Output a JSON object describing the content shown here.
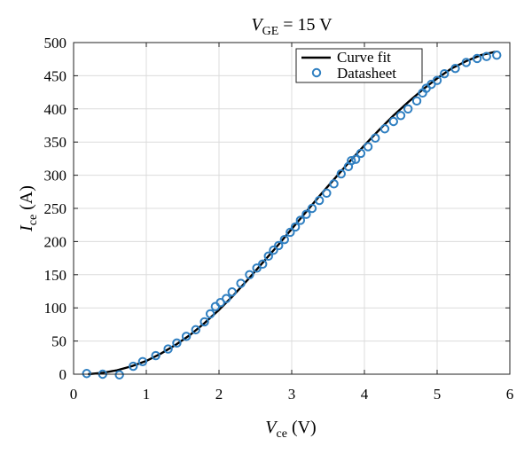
{
  "chart_data": {
    "type": "scatter",
    "title": {
      "var": "V",
      "sub": "GE",
      "rest": " = 15 V"
    },
    "xlabel": {
      "var": "V",
      "sub": "ce",
      "rest": " (V)"
    },
    "ylabel": {
      "var": "I",
      "sub": "ce",
      "rest": " (A)"
    },
    "xlim": [
      0,
      6
    ],
    "ylim": [
      0,
      500
    ],
    "xticks": [
      0,
      1,
      2,
      3,
      4,
      5,
      6
    ],
    "yticks": [
      0,
      50,
      100,
      150,
      200,
      250,
      300,
      350,
      400,
      450,
      500
    ],
    "grid": true,
    "legend_position": "top-right",
    "series": [
      {
        "name": "Curve fit",
        "kind": "line",
        "color": "#000000",
        "x": [
          0.2,
          0.4,
          0.6,
          0.8,
          1.0,
          1.2,
          1.4,
          1.6,
          1.8,
          2.0,
          2.2,
          2.4,
          2.6,
          2.8,
          3.0,
          3.2,
          3.4,
          3.6,
          3.8,
          4.0,
          4.2,
          4.4,
          4.6,
          4.8,
          5.0,
          5.2,
          5.4,
          5.6,
          5.8
        ],
        "y": [
          0,
          2,
          6,
          12,
          20,
          31,
          44,
          59,
          77,
          97,
          119,
          143,
          168,
          193,
          219,
          245,
          271,
          296,
          321,
          345,
          368,
          390,
          410,
          429,
          446,
          461,
          472,
          481,
          486
        ]
      },
      {
        "name": "Datasheet",
        "kind": "marker",
        "color": "#2f7fc1",
        "x": [
          0.18,
          0.4,
          0.63,
          0.82,
          0.95,
          1.13,
          1.3,
          1.42,
          1.55,
          1.68,
          1.8,
          1.88,
          1.95,
          2.02,
          2.1,
          2.18,
          2.3,
          2.42,
          2.52,
          2.6,
          2.68,
          2.75,
          2.82,
          2.9,
          2.98,
          3.05,
          3.12,
          3.2,
          3.28,
          3.38,
          3.48,
          3.58,
          3.68,
          3.78,
          3.82,
          3.88,
          3.95,
          4.05,
          4.15,
          4.28,
          4.4,
          4.5,
          4.6,
          4.72,
          4.8,
          4.85,
          4.92,
          5.0,
          5.1,
          5.25,
          5.4,
          5.55,
          5.68,
          5.82
        ],
        "y": [
          1,
          0,
          -1,
          12,
          19,
          28,
          38,
          47,
          57,
          67,
          79,
          91,
          102,
          108,
          114,
          124,
          137,
          150,
          160,
          166,
          178,
          187,
          194,
          203,
          214,
          222,
          232,
          241,
          250,
          262,
          273,
          287,
          302,
          313,
          322,
          324,
          333,
          343,
          356,
          370,
          381,
          390,
          400,
          412,
          424,
          431,
          437,
          443,
          453,
          461,
          470,
          476,
          479,
          481
        ]
      }
    ]
  }
}
